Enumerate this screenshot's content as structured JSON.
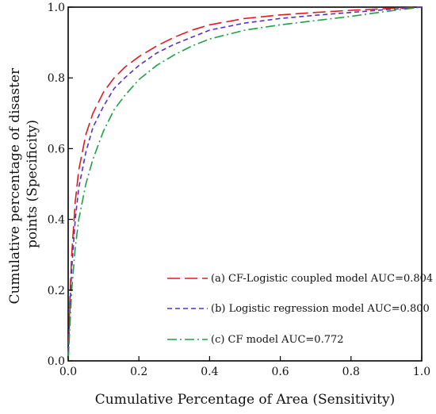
{
  "chart_data": {
    "type": "line",
    "title": "",
    "xlabel": "Cumulative Percentage of Area (Sensitivity)",
    "ylabel_line1": "Cumulative percentage of disaster",
    "ylabel_line2": "points (Specificity)",
    "xlim": [
      0.0,
      1.0
    ],
    "ylim": [
      0.0,
      1.0
    ],
    "xticks": [
      0.0,
      0.2,
      0.4,
      0.6,
      0.8,
      1.0
    ],
    "yticks": [
      0.0,
      0.2,
      0.4,
      0.6,
      0.8,
      1.0
    ],
    "xtick_labels": [
      "0.0",
      "0.2",
      "0.4",
      "0.6",
      "0.8",
      "1.0"
    ],
    "ytick_labels": [
      "0.0",
      "0.2",
      "0.4",
      "0.6",
      "0.8",
      "1.0"
    ],
    "grid": false,
    "legend_position": "bottom-right",
    "series": [
      {
        "name": "(a) CF-Logistic coupled model AUC=0.804",
        "color": "#e31a1c",
        "dash": "long-dash",
        "x": [
          0.0,
          0.005,
          0.01,
          0.02,
          0.03,
          0.05,
          0.07,
          0.1,
          0.13,
          0.16,
          0.2,
          0.25,
          0.3,
          0.35,
          0.4,
          0.5,
          0.6,
          0.7,
          0.8,
          0.9,
          1.0
        ],
        "y": [
          0.0,
          0.18,
          0.3,
          0.45,
          0.54,
          0.64,
          0.7,
          0.76,
          0.8,
          0.83,
          0.86,
          0.89,
          0.915,
          0.935,
          0.95,
          0.968,
          0.978,
          0.985,
          0.991,
          0.996,
          1.0
        ]
      },
      {
        "name": "(b) Logistic regression model AUC=0.800",
        "color": "#5a2fbf",
        "dash": "short-dash",
        "x": [
          0.0,
          0.005,
          0.01,
          0.02,
          0.03,
          0.05,
          0.07,
          0.1,
          0.13,
          0.16,
          0.2,
          0.25,
          0.3,
          0.35,
          0.4,
          0.5,
          0.6,
          0.7,
          0.8,
          0.9,
          1.0
        ],
        "y": [
          0.0,
          0.15,
          0.26,
          0.4,
          0.49,
          0.59,
          0.66,
          0.72,
          0.77,
          0.8,
          0.835,
          0.87,
          0.895,
          0.915,
          0.935,
          0.955,
          0.968,
          0.977,
          0.985,
          0.993,
          1.0
        ]
      },
      {
        "name": "(c) CF model AUC=0.772",
        "color": "#1fa043",
        "dash": "dash-dot",
        "x": [
          0.0,
          0.005,
          0.01,
          0.02,
          0.03,
          0.05,
          0.07,
          0.1,
          0.13,
          0.16,
          0.2,
          0.25,
          0.3,
          0.35,
          0.4,
          0.5,
          0.6,
          0.7,
          0.8,
          0.9,
          1.0
        ],
        "y": [
          0.0,
          0.1,
          0.2,
          0.32,
          0.4,
          0.5,
          0.57,
          0.65,
          0.71,
          0.75,
          0.795,
          0.835,
          0.865,
          0.89,
          0.91,
          0.935,
          0.95,
          0.962,
          0.974,
          0.988,
          1.0
        ]
      }
    ]
  }
}
